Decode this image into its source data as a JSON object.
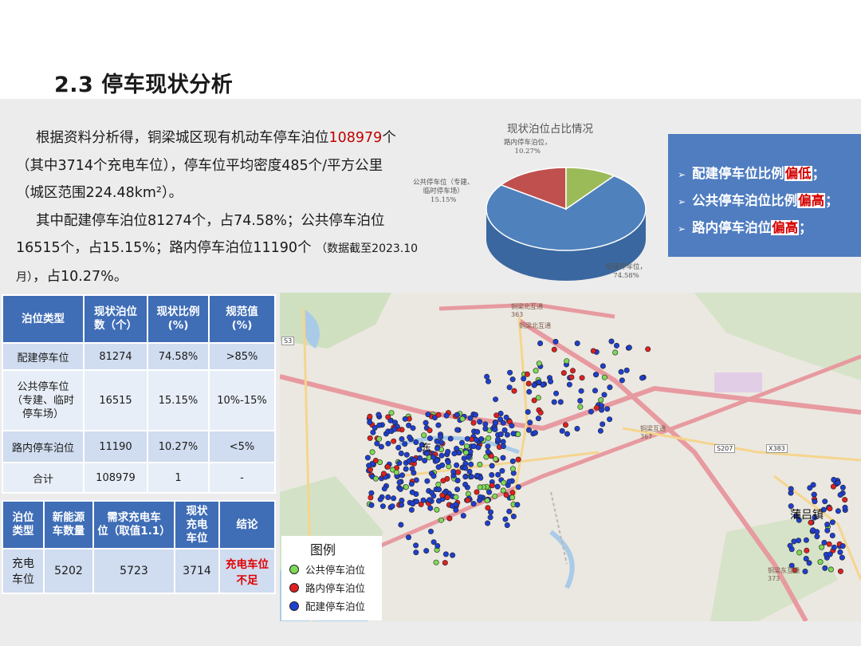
{
  "title": "2.3 停车现状分析",
  "paragraph": {
    "l1a": "根据资料分析得，铜梁城区现有机动车停车泊位",
    "l1b": "108979",
    "l1c": "个",
    "l2": "（其中3714个充电车位），停车位平均密度485个/平方公里",
    "l3": "（城区范围224.48km²）。",
    "l4": "其中配建停车泊位81274个，占74.58%；公共停车泊位",
    "l5a": "16515个，占15.15%；路内停车泊位11190个",
    "l5b": "（数据截至2023.10",
    "l6a": "月）",
    "l6b": "，占10.27%。"
  },
  "pie": {
    "title": "现状泊位占比情况",
    "label_road": "路内停车泊位，\n10.27%",
    "label_public": "公共停车位（专建、\n临时停车场）\n15.15%",
    "label_built": "配建停车位，\n74.58%"
  },
  "chart_data": {
    "type": "pie",
    "title": "现状泊位占比情况",
    "categories": [
      "配建停车位",
      "公共停车位（专建、临时停车场）",
      "路内停车泊位"
    ],
    "values": [
      74.58,
      15.15,
      10.27
    ],
    "colors": [
      "#4f81bd",
      "#c0504d",
      "#9bbb59"
    ]
  },
  "bullets": [
    {
      "pre": "配建停车位比例",
      "hl": "偏低",
      "post": "；"
    },
    {
      "pre": "公共停车泊位比例",
      "hl": "偏高",
      "post": "；"
    },
    {
      "pre": "路内停车泊位",
      "hl": "偏高",
      "post": "；"
    }
  ],
  "table1": {
    "headers": [
      "泊位类型",
      "现状泊位\n数（个）",
      "现状比例\n(%)",
      "规范值\n(%)"
    ],
    "rows": [
      [
        "配建停车位",
        "81274",
        "74.58%",
        ">85%"
      ],
      [
        "公共停车位\n（专建、临时\n停车场）",
        "16515",
        "15.15%",
        "10%-15%"
      ],
      [
        "路内停车泊位",
        "11190",
        "10.27%",
        "<5%"
      ],
      [
        "合计",
        "108979",
        "1",
        "-"
      ]
    ]
  },
  "table2": {
    "headers": [
      "泊位\n类型",
      "新能源\n车数量",
      "需求充电车\n位（取值1.1）",
      "现状\n充电\n车位",
      "结论"
    ],
    "row": [
      "充电\n车位",
      "5202",
      "5723",
      "3714",
      "充电车位\n不足"
    ]
  },
  "legend": {
    "title": "图例",
    "items": [
      "公共停车泊位",
      "路内停车泊位",
      "配建停车泊位"
    ],
    "colors": [
      "#7ed957",
      "#e02020",
      "#1f3fd0"
    ]
  },
  "map_labels": {
    "east": "东",
    "puluzhen": "蒲吕镇",
    "s207": "S207",
    "x383": "X383",
    "ic_north": "铜梁北互通",
    "ic_north_num": "363",
    "ic_north2": "铜梁北互通",
    "ic_mid": "铜梁互通",
    "ic_mid_num": "367",
    "ic_east": "铜梁东互通",
    "ic_east_num": "373",
    "s3": "S3"
  }
}
